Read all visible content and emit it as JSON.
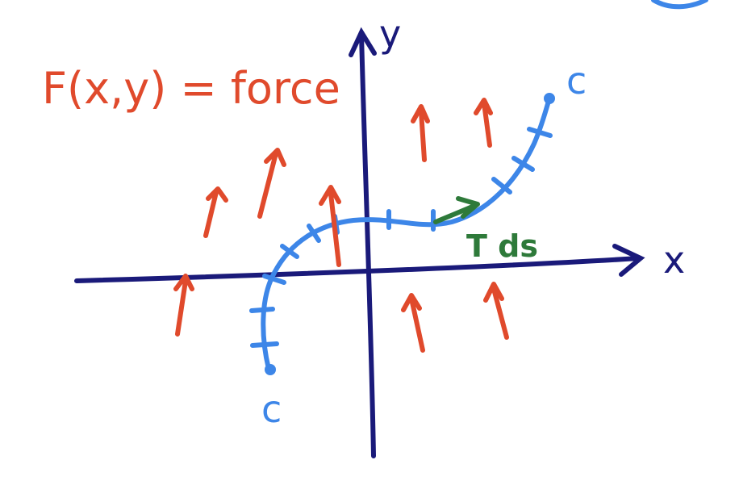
{
  "labels": {
    "force": "F(x,y) = force",
    "x_axis": "x",
    "y_axis": "y",
    "curve_top": "c",
    "curve_bottom": "c",
    "tangent": "T ds"
  },
  "colors": {
    "axes": "#1a1a7a",
    "curve": "#3d86e8",
    "force": "#e04a2c",
    "tangent": "#2e7a3a"
  }
}
